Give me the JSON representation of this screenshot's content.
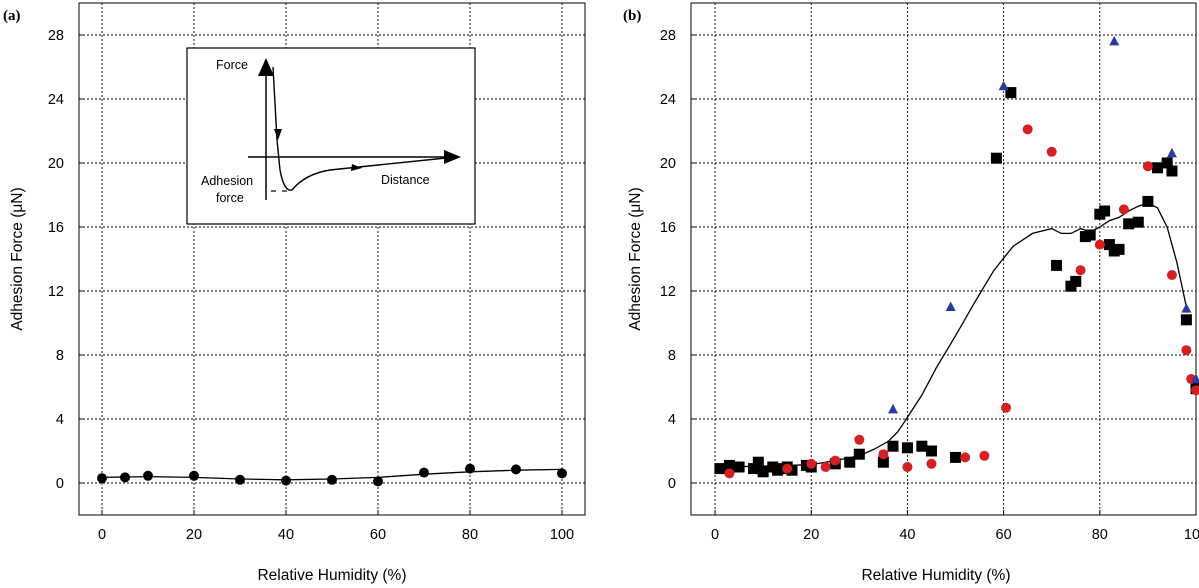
{
  "chart_data": [
    {
      "type": "scatter",
      "panel_label": "(a)",
      "xlabel": "Relative Humidity (%)",
      "ylabel": "Adhesion Force (μN)",
      "xlim": [
        -5,
        105
      ],
      "ylim": [
        -2,
        30
      ],
      "xticks": [
        0,
        20,
        40,
        60,
        80,
        100
      ],
      "yticks": [
        0,
        4,
        8,
        12,
        16,
        20,
        24,
        28
      ],
      "grid": true,
      "series": [
        {
          "marker": "circle",
          "color": "#000000",
          "x": [
            0,
            5,
            10,
            20,
            30,
            40,
            50,
            60,
            70,
            80,
            90,
            100
          ],
          "y": [
            0.3,
            0.35,
            0.45,
            0.45,
            0.2,
            0.15,
            0.2,
            0.1,
            0.65,
            0.9,
            0.85,
            0.6
          ]
        }
      ],
      "fit_line": {
        "x": [
          0,
          10,
          20,
          30,
          40,
          50,
          60,
          70,
          80,
          90,
          100
        ],
        "y": [
          0.35,
          0.4,
          0.35,
          0.25,
          0.2,
          0.25,
          0.35,
          0.55,
          0.7,
          0.8,
          0.85
        ]
      },
      "inset": {
        "ylabel": "Force",
        "xlabel": "Distance",
        "annotation": [
          "Adhesion",
          "force"
        ]
      }
    },
    {
      "type": "scatter",
      "panel_label": "(b)",
      "xlabel": "Relative Humidity (%)",
      "ylabel": "Adhesion Force (μN)",
      "xlim": [
        -5,
        100
      ],
      "ylim": [
        -2,
        30
      ],
      "xticks": [
        0,
        20,
        40,
        60,
        80,
        100
      ],
      "yticks": [
        0,
        4,
        8,
        12,
        16,
        20,
        24,
        28
      ],
      "grid": true,
      "series": [
        {
          "marker": "square",
          "color": "#000000",
          "x": [
            1,
            3,
            5,
            8,
            9,
            10,
            12,
            13,
            14,
            15,
            16,
            19,
            20,
            25,
            28,
            30,
            35,
            37,
            40,
            43,
            45,
            50,
            58.5,
            61.5,
            71,
            74,
            75,
            77,
            78,
            80,
            81,
            82,
            83,
            84,
            86,
            88,
            90,
            92,
            94,
            95,
            98,
            100
          ],
          "y": [
            0.9,
            1.1,
            1.0,
            0.9,
            1.3,
            0.7,
            1.0,
            0.8,
            0.9,
            1.0,
            0.8,
            1.1,
            1.0,
            1.2,
            1.3,
            1.8,
            1.3,
            2.3,
            2.2,
            2.3,
            2.0,
            1.6,
            20.3,
            24.4,
            13.6,
            12.3,
            12.6,
            15.4,
            15.5,
            16.8,
            17.0,
            14.9,
            14.5,
            14.6,
            16.2,
            16.3,
            17.6,
            19.7,
            20.0,
            19.5,
            10.2,
            5.9
          ]
        },
        {
          "marker": "circle",
          "color": "#d42020",
          "x": [
            3,
            15,
            20,
            23,
            25,
            30,
            35,
            40,
            45,
            52,
            56,
            60.5,
            65,
            70,
            76,
            80,
            85,
            90,
            95,
            98,
            99,
            100
          ],
          "y": [
            0.6,
            0.9,
            1.2,
            1.0,
            1.4,
            2.7,
            1.8,
            1.0,
            1.2,
            1.6,
            1.7,
            4.7,
            22.1,
            20.7,
            13.3,
            14.9,
            17.1,
            19.8,
            13.0,
            8.3,
            6.5,
            5.8
          ]
        },
        {
          "marker": "triangle",
          "color": "#2b3a9e",
          "x": [
            37,
            49,
            60,
            83,
            95,
            98,
            100
          ],
          "y": [
            4.6,
            11.0,
            24.8,
            27.6,
            20.6,
            10.9,
            6.5
          ]
        }
      ],
      "fit_line": {
        "x": [
          0,
          10,
          20,
          25,
          30,
          33,
          36,
          38,
          40,
          43,
          46,
          50,
          54,
          58,
          62,
          66,
          70,
          72,
          74,
          76,
          78,
          80,
          82,
          84,
          86,
          88,
          90,
          92,
          94,
          96,
          98
        ],
        "y": [
          1.0,
          1.05,
          1.15,
          1.4,
          1.7,
          2.1,
          2.6,
          3.2,
          4.1,
          5.5,
          7.2,
          9.2,
          11.3,
          13.3,
          14.8,
          15.6,
          15.9,
          15.6,
          15.6,
          15.9,
          15.7,
          16.0,
          16.4,
          16.6,
          17.0,
          17.3,
          17.5,
          17.2,
          16.0,
          13.8,
          11.0
        ]
      }
    }
  ]
}
